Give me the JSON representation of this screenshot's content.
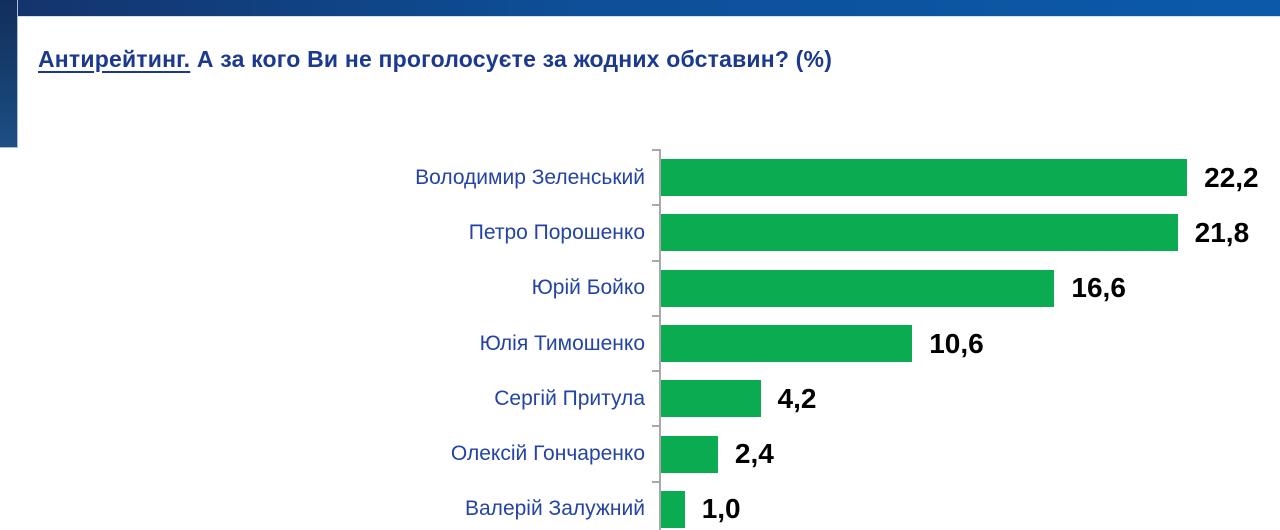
{
  "header": {
    "title_prefix": "Антирейтинг.",
    "title_rest": " А за кого Ви не проголосуєте за жодних обставин? (%)"
  },
  "chart_data": {
    "type": "bar",
    "orientation": "horizontal",
    "title": "Антирейтинг. А за кого Ви не проголосуєте за жодних обставин? (%)",
    "categories": [
      "Володимир Зеленський",
      "Петро Порошенко",
      "Юрій Бойко",
      "Юлія Тимошенко",
      "Сергій Притула",
      "Олексій Гончаренко",
      "Валерій Залужний"
    ],
    "values": [
      22.2,
      21.8,
      16.6,
      10.6,
      4.2,
      2.4,
      1.0
    ],
    "value_labels": [
      "22,2",
      "21,8",
      "16,6",
      "10,6",
      "4,2",
      "2,4",
      "1,0"
    ],
    "xlim": [
      0,
      25
    ],
    "grid": false,
    "legend": false,
    "bar_color": "#0bab52",
    "category_label_color": "#2344a4",
    "value_label_color": "#000000",
    "axis_color": "#a9a9a9",
    "title_color": "#1b3a8f",
    "banner_color": "#0b5aa9",
    "tab_color": "#142f5f"
  }
}
